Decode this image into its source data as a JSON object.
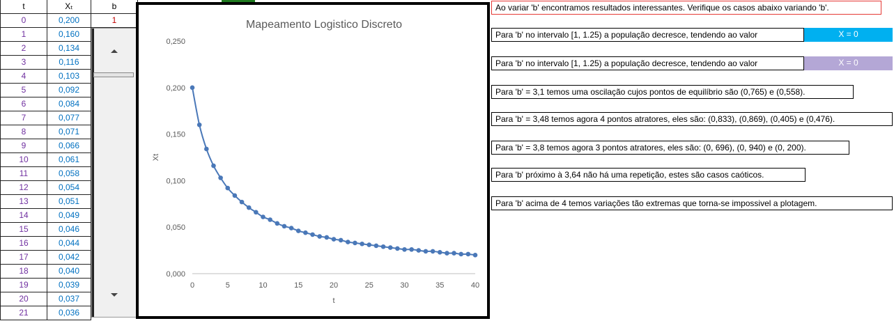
{
  "table": {
    "headers": {
      "t": "t",
      "x": "Xₜ",
      "b": "b"
    },
    "b_value": "1",
    "rows": [
      {
        "t": "0",
        "x": "0,200"
      },
      {
        "t": "1",
        "x": "0,160"
      },
      {
        "t": "2",
        "x": "0,134"
      },
      {
        "t": "3",
        "x": "0,116"
      },
      {
        "t": "4",
        "x": "0,103"
      },
      {
        "t": "5",
        "x": "0,092"
      },
      {
        "t": "6",
        "x": "0,084"
      },
      {
        "t": "7",
        "x": "0,077"
      },
      {
        "t": "8",
        "x": "0,071"
      },
      {
        "t": "9",
        "x": "0,066"
      },
      {
        "t": "10",
        "x": "0,061"
      },
      {
        "t": "11",
        "x": "0,058"
      },
      {
        "t": "12",
        "x": "0,054"
      },
      {
        "t": "13",
        "x": "0,051"
      },
      {
        "t": "14",
        "x": "0,049"
      },
      {
        "t": "15",
        "x": "0,046"
      },
      {
        "t": "16",
        "x": "0,044"
      },
      {
        "t": "17",
        "x": "0,042"
      },
      {
        "t": "18",
        "x": "0,040"
      },
      {
        "t": "19",
        "x": "0,039"
      },
      {
        "t": "20",
        "x": "0,037"
      },
      {
        "t": "21",
        "x": "0,036"
      }
    ]
  },
  "notes": {
    "intro": "Ao variar 'b' encontramos resultados interessantes. Verifique os casos abaixo variando 'b'.",
    "case1": "Para 'b' no intervalo [1, 1.25) a população decresce, tendendo ao valor",
    "case1_badge": "X = 0",
    "case2": "Para 'b' no intervalo [1, 1.25) a população decresce, tendendo ao valor",
    "case2_badge": "X = 0",
    "case3": "Para 'b' = 3,1 temos uma oscilação cujos pontos de equilíbrio são (0,765) e (0,558).",
    "case4": "Para 'b' = 3,48 temos agora 4 pontos atratores, eles são: (0,833), (0,869), (0,405) e (0,476).",
    "case5": "Para 'b' = 3,8 temos agora 3 pontos atratores, eles são: (0, 696), (0, 940) e (0, 200).",
    "case6": "Para 'b' próximo à 3,64 não há uma repetição, estes são casos caóticos.",
    "case7": "Para 'b' acima de 4 temos variações tão extremas que torna-se impossivel a plotagem."
  },
  "colors": {
    "badge1": "#00b0f0",
    "badge2": "#b4a7d6",
    "series": "#4a78b8"
  },
  "chart_data": {
    "type": "line",
    "title": "Mapeamento Logistico Discreto",
    "xlabel": "t",
    "ylabel": "Xt",
    "xlim": [
      0,
      40
    ],
    "ylim": [
      0,
      0.25
    ],
    "x_ticks": [
      "0",
      "5",
      "10",
      "15",
      "20",
      "25",
      "30",
      "35",
      "40"
    ],
    "y_ticks": [
      "0,000",
      "0,050",
      "0,100",
      "0,150",
      "0,200",
      "0,250"
    ],
    "x": [
      0,
      1,
      2,
      3,
      4,
      5,
      6,
      7,
      8,
      9,
      10,
      11,
      12,
      13,
      14,
      15,
      16,
      17,
      18,
      19,
      20,
      21,
      22,
      23,
      24,
      25,
      26,
      27,
      28,
      29,
      30,
      31,
      32,
      33,
      34,
      35,
      36,
      37,
      38,
      39,
      40
    ],
    "values": [
      0.2,
      0.16,
      0.134,
      0.116,
      0.103,
      0.092,
      0.084,
      0.077,
      0.071,
      0.066,
      0.061,
      0.058,
      0.054,
      0.051,
      0.049,
      0.046,
      0.044,
      0.042,
      0.04,
      0.039,
      0.037,
      0.036,
      0.034,
      0.033,
      0.032,
      0.031,
      0.03,
      0.029,
      0.028,
      0.027,
      0.026,
      0.026,
      0.025,
      0.024,
      0.024,
      0.023,
      0.022,
      0.022,
      0.021,
      0.021,
      0.02
    ],
    "grid": false,
    "legend": "none"
  }
}
